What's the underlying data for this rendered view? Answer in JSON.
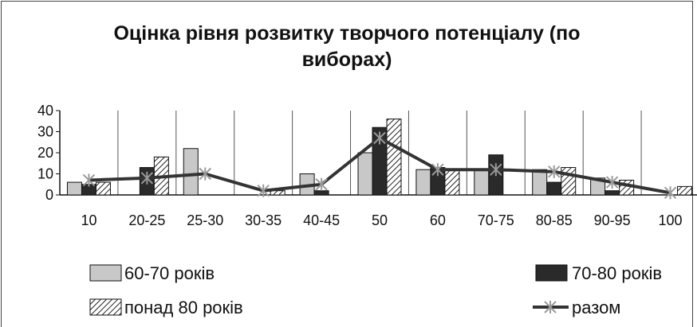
{
  "chart_data": {
    "type": "bar",
    "title": "Оцінка рівня розвитку творчого потенціалу (по виборах)",
    "categories": [
      "10",
      "20-25",
      "25-30",
      "30-35",
      "40-45",
      "50",
      "60",
      "70-75",
      "80-85",
      "90-95",
      "100"
    ],
    "ylim": [
      0,
      40
    ],
    "yticks": [
      0,
      10,
      20,
      30,
      40
    ],
    "grid": "vertical category lines",
    "legend_position": "bottom",
    "series": [
      {
        "name": "60-70 років",
        "kind": "bar",
        "pattern": "light-gray",
        "color": "#c8c8c8",
        "values": [
          6,
          0,
          22,
          0,
          10,
          20,
          12,
          12,
          12,
          8,
          0
        ]
      },
      {
        "name": "70-80 років",
        "kind": "bar",
        "pattern": "dark",
        "color": "#2a2a2a",
        "values": [
          5,
          13,
          0,
          0,
          2,
          32,
          13,
          19,
          6,
          2,
          0
        ]
      },
      {
        "name": "понад  80 років",
        "kind": "bar",
        "pattern": "diagonal-hatch",
        "color": "#ffffff",
        "values": [
          6,
          18,
          0,
          2,
          0,
          36,
          12,
          0,
          13,
          7,
          4
        ]
      },
      {
        "name": "разом",
        "kind": "line",
        "marker": "star-x",
        "color": "#333333",
        "marker_color": "#9a9a9a",
        "values": [
          7,
          8,
          10,
          2,
          5,
          27,
          12,
          12,
          11,
          6,
          1
        ]
      }
    ]
  }
}
